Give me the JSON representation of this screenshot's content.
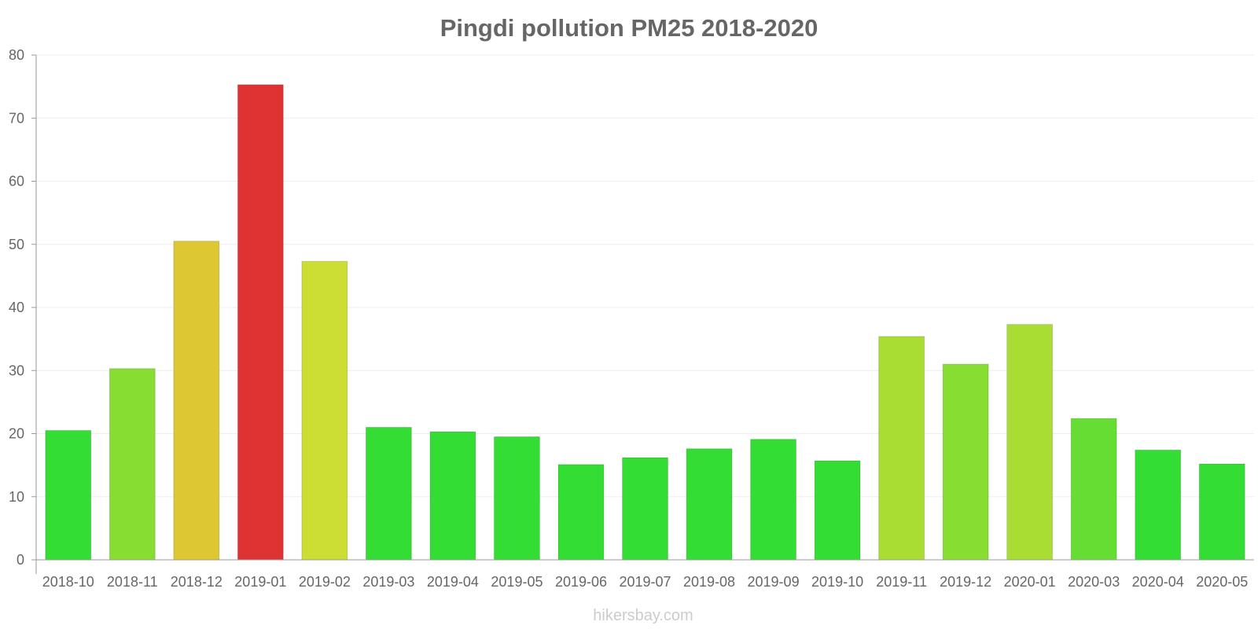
{
  "chart_data": {
    "type": "bar",
    "title": "Pingdi pollution PM25 2018-2020",
    "xlabel": "",
    "ylabel": "",
    "ylim": [
      0,
      80
    ],
    "yticks": [
      0,
      10,
      20,
      30,
      40,
      50,
      60,
      70,
      80
    ],
    "grid": true,
    "categories": [
      "2018-10",
      "2018-11",
      "2018-12",
      "2019-01",
      "2019-02",
      "2019-03",
      "2019-04",
      "2019-05",
      "2019-06",
      "2019-07",
      "2019-08",
      "2019-09",
      "2019-10",
      "2019-11",
      "2019-12",
      "2020-01",
      "2020-03",
      "2020-04",
      "2020-05"
    ],
    "values": [
      20.5,
      30.3,
      50.5,
      75.3,
      47.3,
      21.0,
      20.3,
      19.5,
      15.1,
      16.2,
      17.6,
      19.1,
      15.7,
      35.4,
      31.0,
      37.3,
      22.4,
      17.4,
      15.2
    ],
    "colors": [
      "#33dd33",
      "#88dd33",
      "#ddc833",
      "#dd3333",
      "#ccdd33",
      "#33dd33",
      "#33dd33",
      "#33dd33",
      "#33dd33",
      "#33dd33",
      "#33dd33",
      "#33dd33",
      "#33dd33",
      "#aadd33",
      "#88dd33",
      "#aadd33",
      "#66dd33",
      "#33dd33",
      "#33dd33"
    ],
    "watermark": "hikersbay.com"
  }
}
